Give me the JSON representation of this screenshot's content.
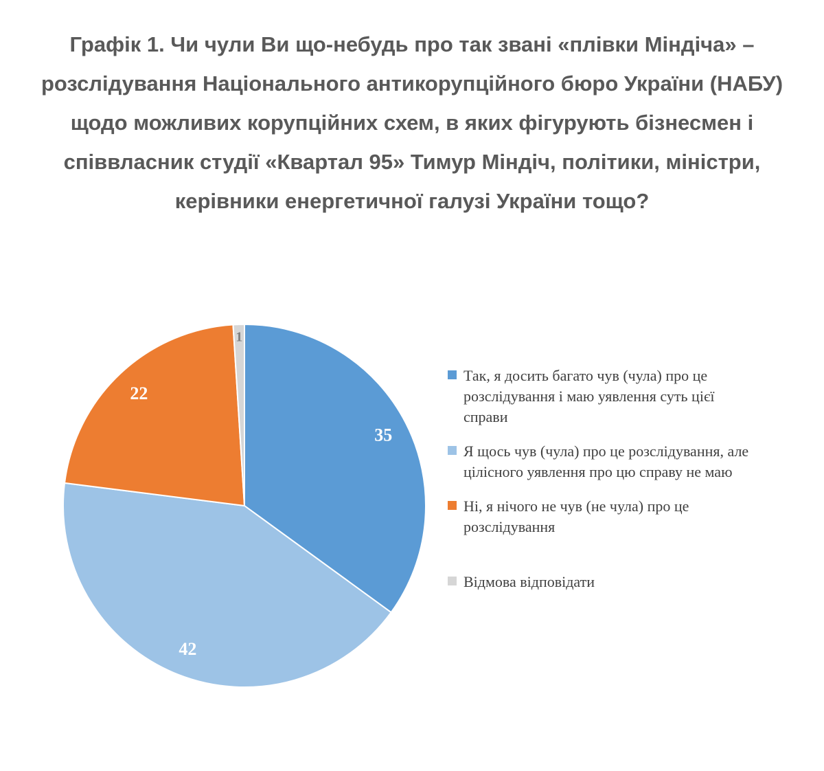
{
  "chart_data": {
    "type": "pie",
    "title": "Графік 1. Чи чули Ви що-небудь про так звані «плівки Міндіча» – розслідування Національного антикорупційного бюро України (НАБУ) щодо можливих корупційних схем, в яких фігурують бізнесмен і співвласник студії «Квартал 95» Тимур Міндіч, політики, міністри, керівники енергетичної галузі України тощо?",
    "unit": "percent",
    "start_angle_deg": 0,
    "direction": "clockwise",
    "legend_position": "right",
    "title_color": "#595959",
    "legend_text_color": "#404040",
    "series": [
      {
        "label": "Так, я досить багато чув (чула) про це розслідування і маю уявлення суть цієї справи",
        "value": 35,
        "color": "#5B9BD5",
        "label_color": "#FFFFFF"
      },
      {
        "label": "Я щось чув (чула) про це розслідування, але цілісного уявлення про цю справу не маю",
        "value": 42,
        "color": "#9DC3E6",
        "label_color": "#FFFFFF"
      },
      {
        "label": "Ні, я нічого не чув (не чула) про це розслідування",
        "value": 22,
        "color": "#ED7D31",
        "label_color": "#FFFFFF"
      },
      {
        "label": "Відмова відповідати",
        "value": 1,
        "color": "#D6D6D6",
        "label_color": "#7F7F7F"
      }
    ]
  }
}
